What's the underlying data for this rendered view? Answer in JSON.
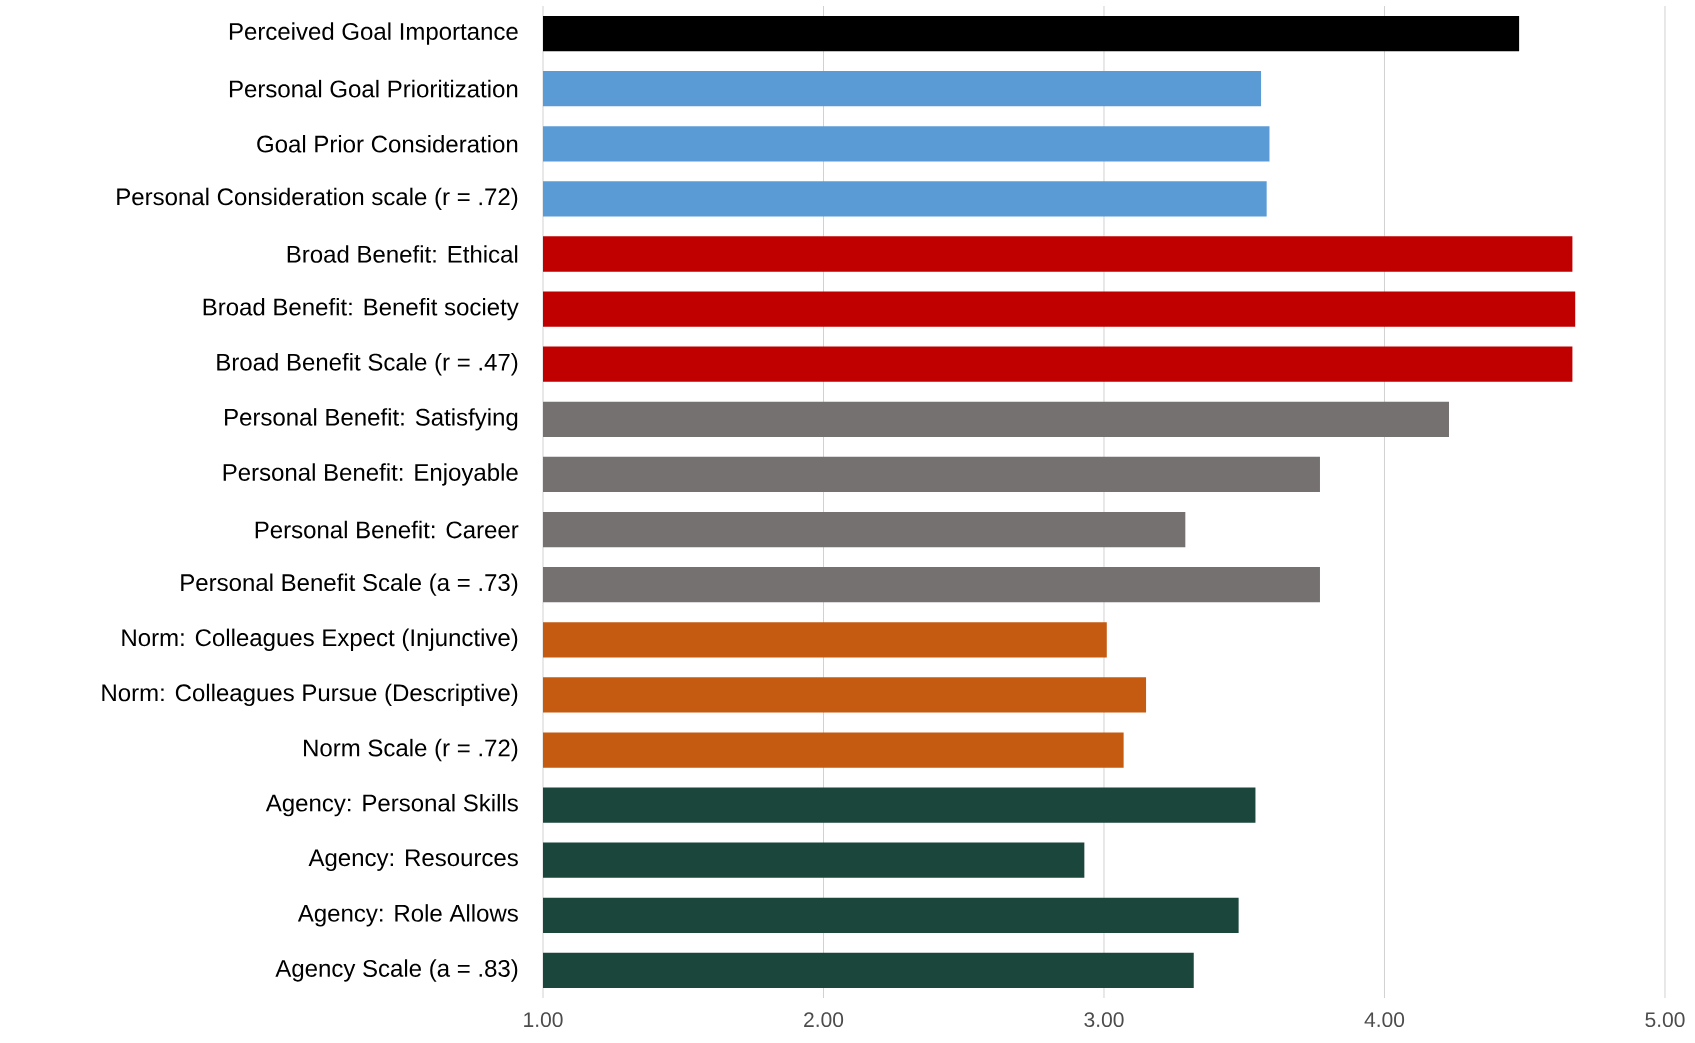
{
  "chart_data": {
    "type": "bar",
    "orientation": "horizontal",
    "grid": "x",
    "categories": [
      "Perceived Goal Importance",
      "Personal Goal Prioritization",
      "Goal Prior Consideration",
      "Personal Consideration scale (r = .72)",
      "Broad Benefit: Ethical",
      "Broad Benefit: Benefit society",
      "Broad Benefit Scale (r = .47)",
      "Personal Benefit: Satisfying",
      "Personal Benefit: Enjoyable",
      "Personal Benefit: Career",
      "Personal Benefit Scale (a = .73)",
      "Norm: Colleagues Expect (Injunctive)",
      "Norm: Colleagues Pursue (Descriptive)",
      "Norm Scale (r = .72)",
      "Agency: Personal Skills",
      "Agency: Resources",
      "Agency: Role Allows",
      "Agency Scale (a = .83)"
    ],
    "values": [
      4.48,
      3.56,
      3.59,
      3.58,
      4.67,
      4.68,
      4.67,
      4.23,
      3.77,
      3.29,
      3.77,
      3.01,
      3.15,
      3.07,
      3.54,
      2.93,
      3.48,
      3.32
    ],
    "colors": [
      "#000000",
      "#5b9bd5",
      "#5b9bd5",
      "#5b9bd5",
      "#c00000",
      "#c00000",
      "#c00000",
      "#767171",
      "#767171",
      "#767171",
      "#767171",
      "#c55a11",
      "#c55a11",
      "#c55a11",
      "#1a463c",
      "#1a463c",
      "#1a463c",
      "#1a463c"
    ],
    "xlim": [
      1,
      5
    ],
    "xticks": [
      {
        "value": 1,
        "label": "1.00"
      },
      {
        "value": 2,
        "label": "2.00"
      },
      {
        "value": 3,
        "label": "3.00"
      },
      {
        "value": 4,
        "label": "4.00"
      },
      {
        "value": 5,
        "label": "5.00"
      }
    ]
  }
}
